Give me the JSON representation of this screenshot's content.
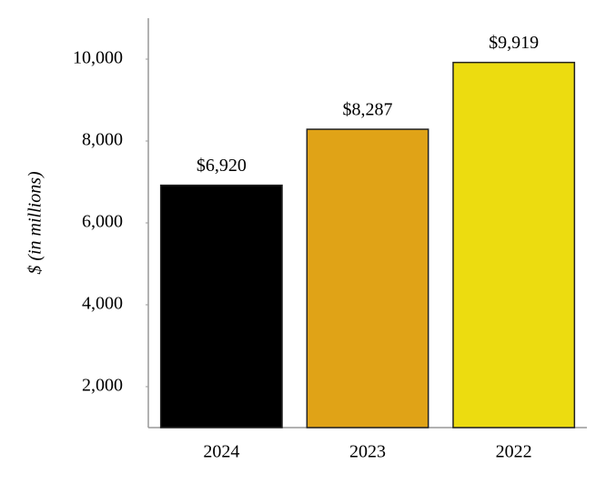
{
  "chart_data": {
    "type": "bar",
    "y_label": "$ (in millions)",
    "categories": [
      "2024",
      "2023",
      "2022"
    ],
    "values": [
      6920,
      8287,
      9919
    ],
    "value_labels": [
      "$6,920",
      "$8,287",
      "$9,919"
    ],
    "colors": [
      "#000000",
      "#e0a317",
      "#ecdc10"
    ],
    "ylim": [
      1000,
      11000
    ],
    "yticks": [
      {
        "value": 2000,
        "label": "2,000"
      },
      {
        "value": 4000,
        "label": "4,000"
      },
      {
        "value": 6000,
        "label": "6,000"
      },
      {
        "value": 8000,
        "label": "8,000"
      },
      {
        "value": 10000,
        "label": "10,000"
      }
    ],
    "grid": false
  }
}
